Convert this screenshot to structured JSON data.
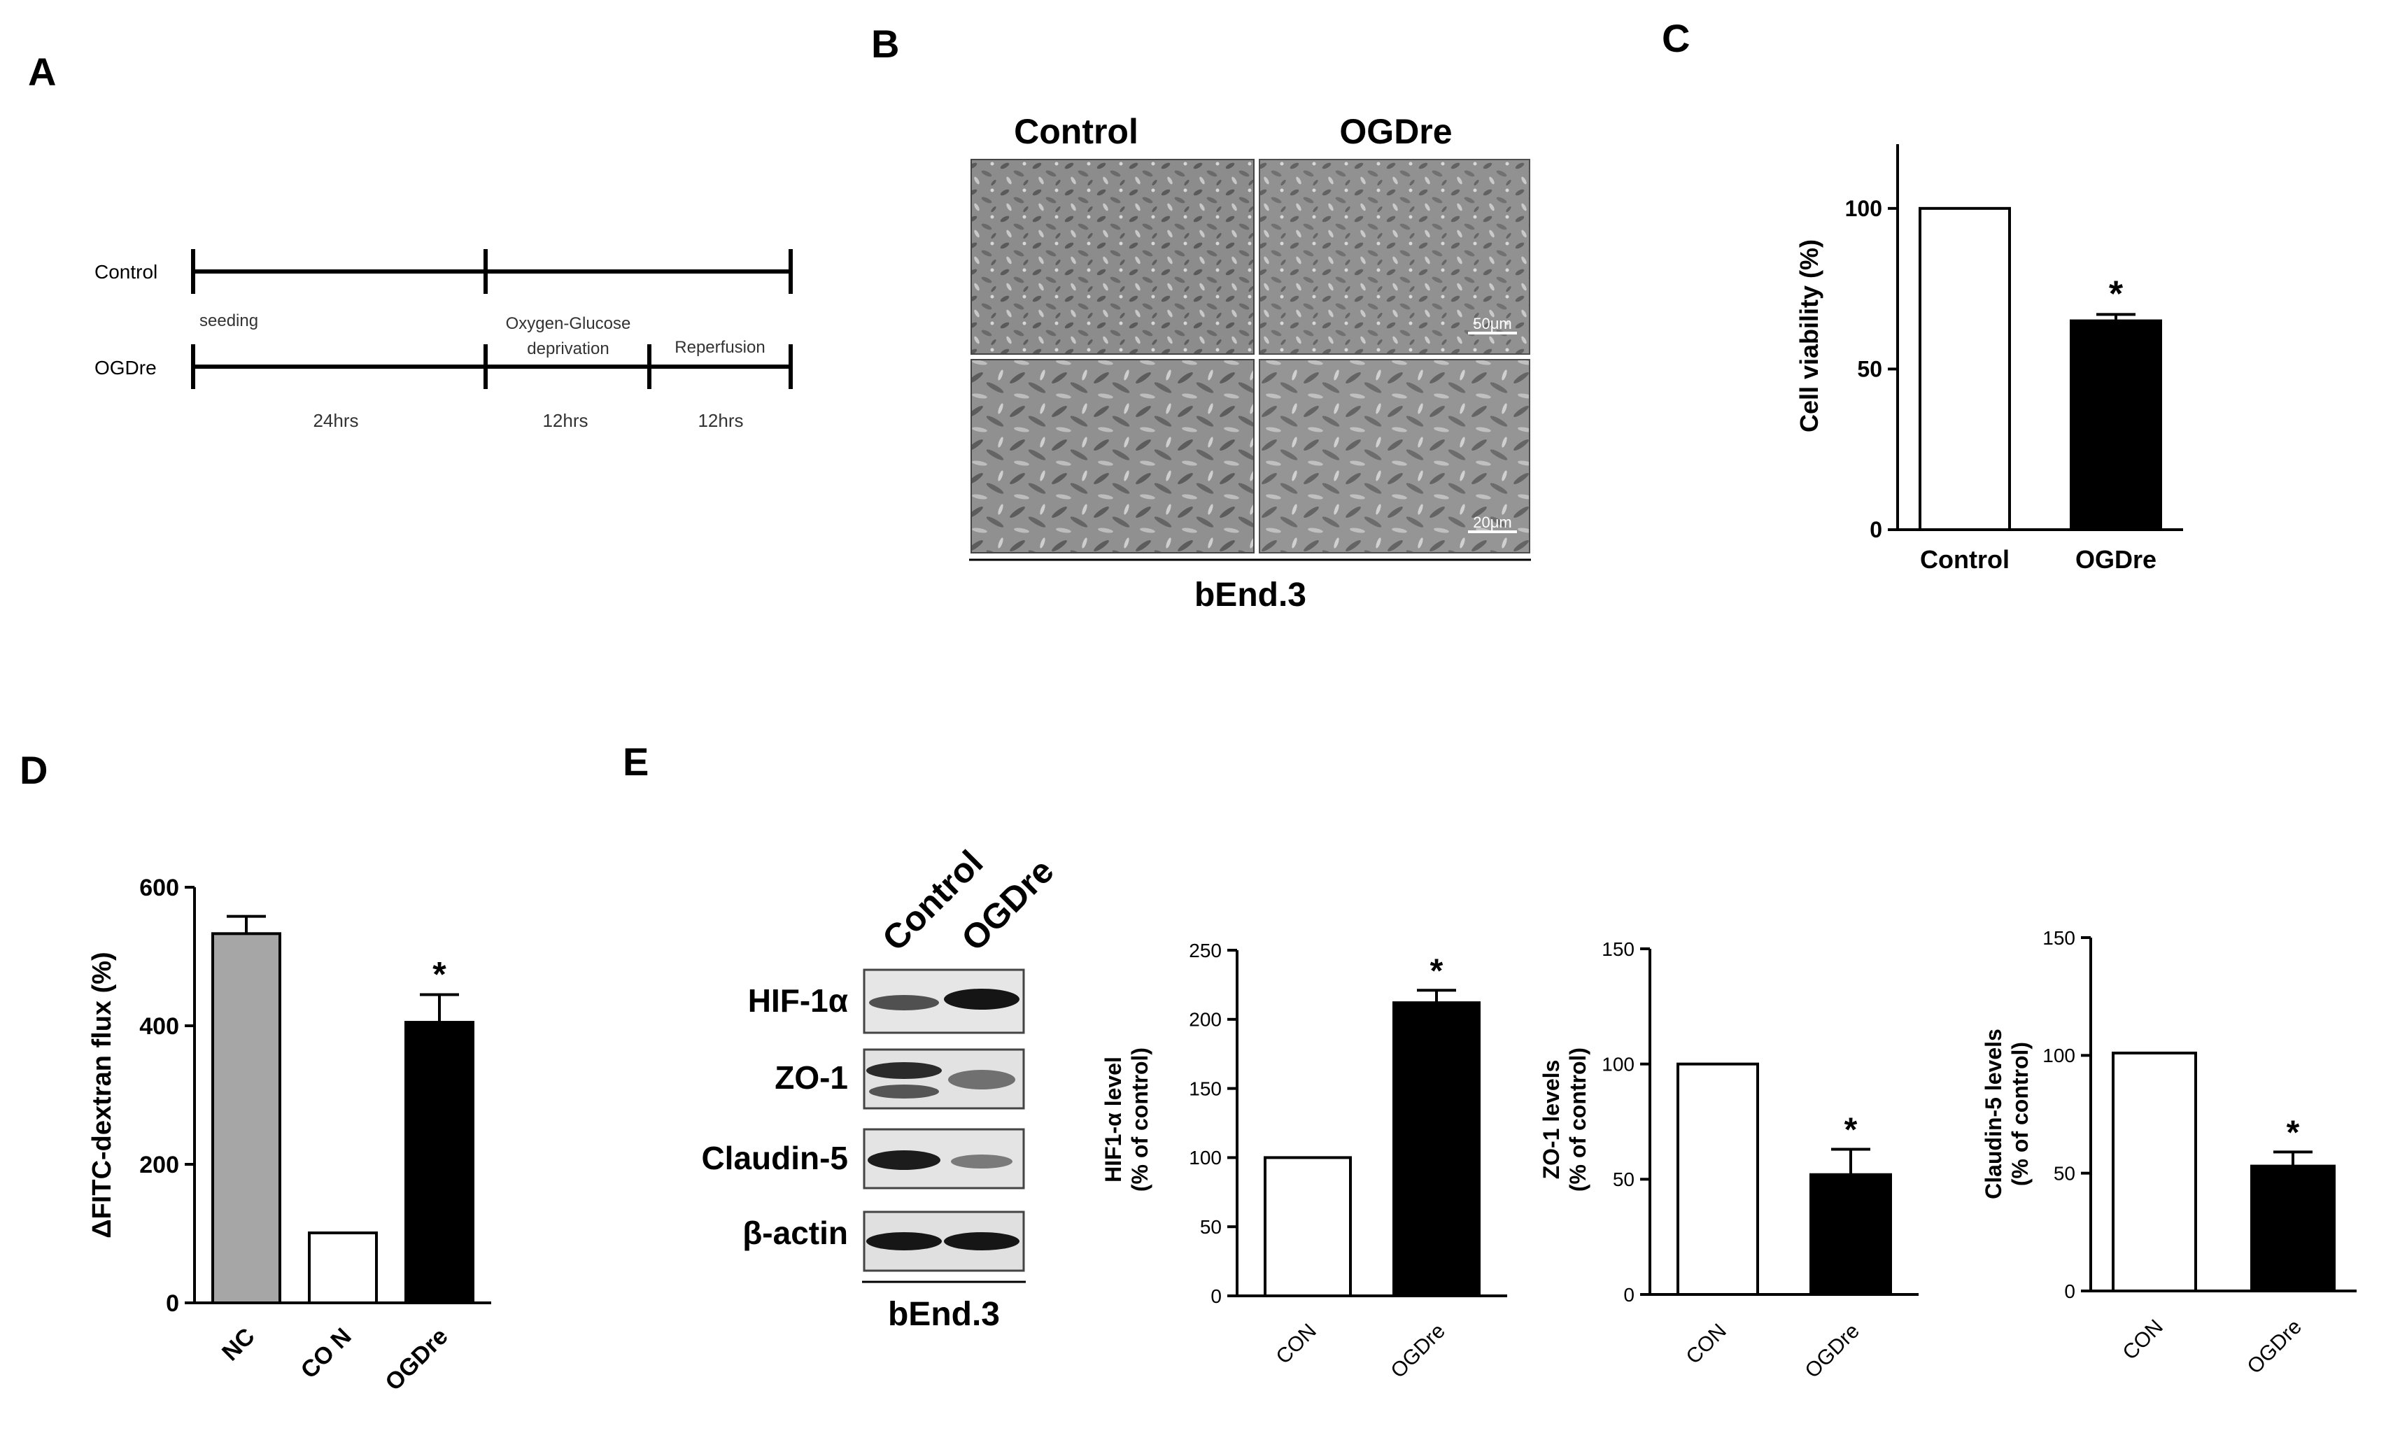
{
  "panels": {
    "A": {
      "letter": "A",
      "rows": [
        "Control",
        "OGDre"
      ],
      "labels": {
        "seeding": "seeding",
        "ogd_line1": "Oxygen-Glucose",
        "ogd_line2": "deprivation",
        "reperfusion": "Reperfusion",
        "d1": "24hrs",
        "d2": "12hrs",
        "d3": "12hrs"
      }
    },
    "B": {
      "letter": "B",
      "columns": [
        "Control",
        "OGDre"
      ],
      "scale_top": "50μm",
      "scale_bottom": "20μm",
      "cell_line": "bEnd.3"
    },
    "C": {
      "letter": "C"
    },
    "D": {
      "letter": "D"
    },
    "E": {
      "letter": "E",
      "blot_columns": [
        "Control",
        "OGDre"
      ],
      "blot_rows": [
        "HIF-1α",
        "ZO-1",
        "Claudin-5",
        "β-actin"
      ],
      "cell_line": "bEnd.3"
    }
  },
  "chart_data": [
    {
      "id": "C",
      "type": "bar",
      "categories": [
        "Control",
        "OGDre"
      ],
      "values": [
        100,
        65
      ],
      "errors": [
        0,
        2
      ],
      "colors": [
        "#ffffff",
        "#000000"
      ],
      "significance": [
        "",
        "*"
      ],
      "ylabel": "Cell viability (%)",
      "yticks": [
        0,
        50,
        100
      ],
      "ylim": [
        0,
        120
      ]
    },
    {
      "id": "D",
      "type": "bar",
      "categories": [
        "NC",
        "CO N",
        "OGDre"
      ],
      "values": [
        533,
        101,
        405
      ],
      "errors": [
        25,
        0,
        40
      ],
      "colors": [
        "#a6a6a6",
        "#ffffff",
        "#000000"
      ],
      "significance": [
        "",
        "",
        "*"
      ],
      "ylabel": "ΔFITC-dextran flux (%)",
      "yticks": [
        0,
        200,
        400,
        600
      ],
      "ylim": [
        0,
        600
      ]
    },
    {
      "id": "E1",
      "type": "bar",
      "categories": [
        "CON",
        "OGDre"
      ],
      "values": [
        100,
        212
      ],
      "errors": [
        0,
        9
      ],
      "colors": [
        "#ffffff",
        "#000000"
      ],
      "significance": [
        "",
        "*"
      ],
      "ylabel_lines": [
        "HIF1-α level",
        "(% of control)"
      ],
      "yticks": [
        0,
        50,
        100,
        150,
        200,
        250
      ],
      "ylim": [
        0,
        250
      ]
    },
    {
      "id": "E2",
      "type": "bar",
      "categories": [
        "CON",
        "OGDre"
      ],
      "values": [
        100,
        52
      ],
      "errors": [
        0,
        11
      ],
      "colors": [
        "#ffffff",
        "#000000"
      ],
      "significance": [
        "",
        "*"
      ],
      "ylabel_lines": [
        "ZO-1 levels",
        "(% of control)"
      ],
      "yticks": [
        0,
        50,
        100,
        150
      ],
      "ylim": [
        0,
        150
      ]
    },
    {
      "id": "E3",
      "type": "bar",
      "categories": [
        "CON",
        "OGDre"
      ],
      "values": [
        101,
        53
      ],
      "errors": [
        0,
        6
      ],
      "colors": [
        "#ffffff",
        "#000000"
      ],
      "significance": [
        "",
        "*"
      ],
      "ylabel_lines": [
        "Claudin-5 levels",
        "(% of control)"
      ],
      "yticks": [
        0,
        50,
        100,
        150
      ],
      "ylim": [
        0,
        150
      ]
    }
  ]
}
